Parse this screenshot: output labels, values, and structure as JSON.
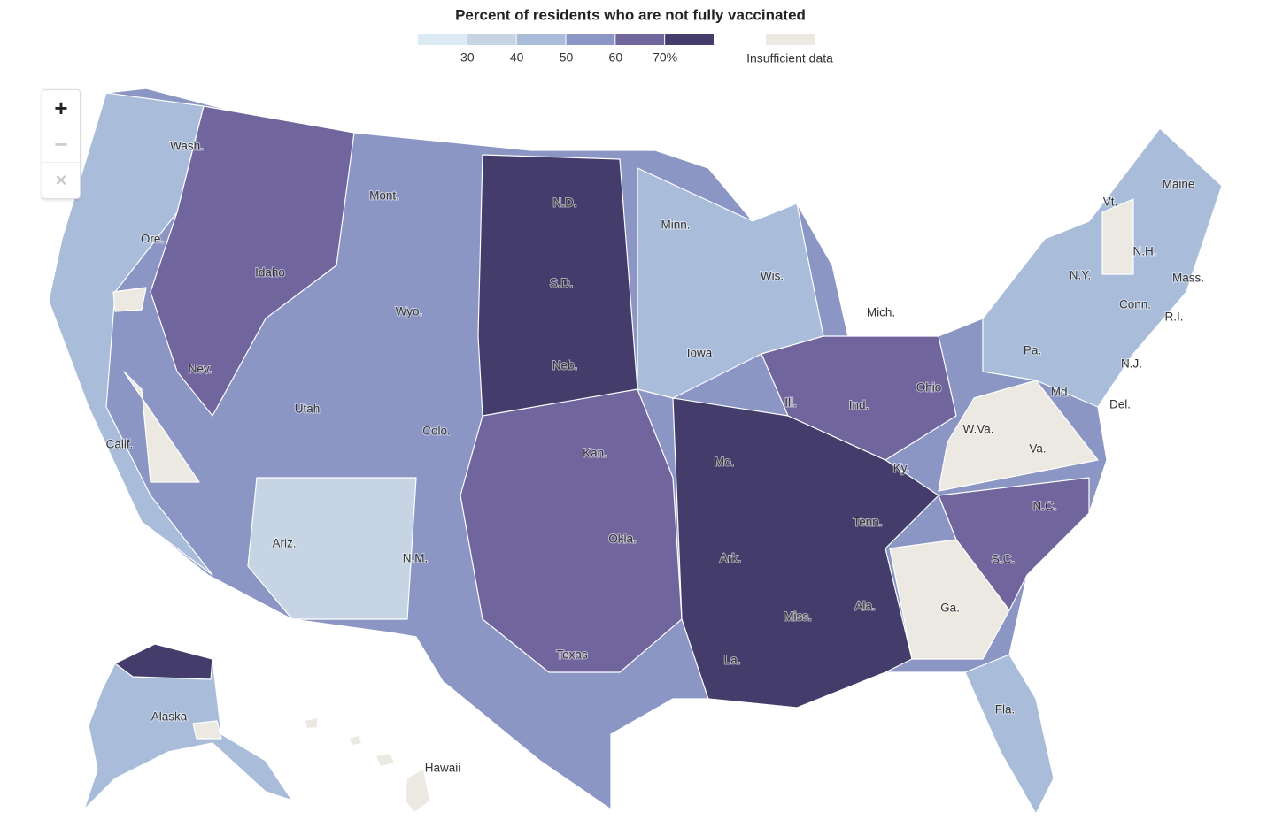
{
  "legend": {
    "title": "Percent of residents who are not fully vaccinated",
    "colors": [
      "#dcebf3",
      "#c6d4e3",
      "#a9bddb",
      "#8c96c4",
      "#71659e",
      "#443d6b"
    ],
    "ticks": [
      "30",
      "40",
      "50",
      "60",
      "70%"
    ],
    "insufficient": {
      "label": "Insufficient data",
      "color": "#ebe9e2"
    }
  },
  "state_labels": [
    "Wash.",
    "Ore.",
    "Calif.",
    "Nev.",
    "Idaho",
    "Mont.",
    "Wyo.",
    "Utah",
    "Ariz.",
    "Colo.",
    "N.M.",
    "N.D.",
    "S.D.",
    "Neb.",
    "Kan.",
    "Okla.",
    "Texas",
    "Minn.",
    "Iowa",
    "Mo.",
    "Ark.",
    "La.",
    "Wis.",
    "Ill.",
    "Mich.",
    "Ind.",
    "Ohio",
    "Ky.",
    "Tenn.",
    "Miss.",
    "Ala.",
    "Ga.",
    "Fla.",
    "S.C.",
    "N.C.",
    "Va.",
    "W.Va.",
    "Pa.",
    "N.Y.",
    "Vt.",
    "N.H.",
    "Maine",
    "Mass.",
    "Conn.",
    "R.I.",
    "N.J.",
    "Md.",
    "Del.",
    "Alaska",
    "Hawaii"
  ],
  "controls": {
    "zoom_in": "+",
    "zoom_out": "−",
    "reset": "×"
  }
}
